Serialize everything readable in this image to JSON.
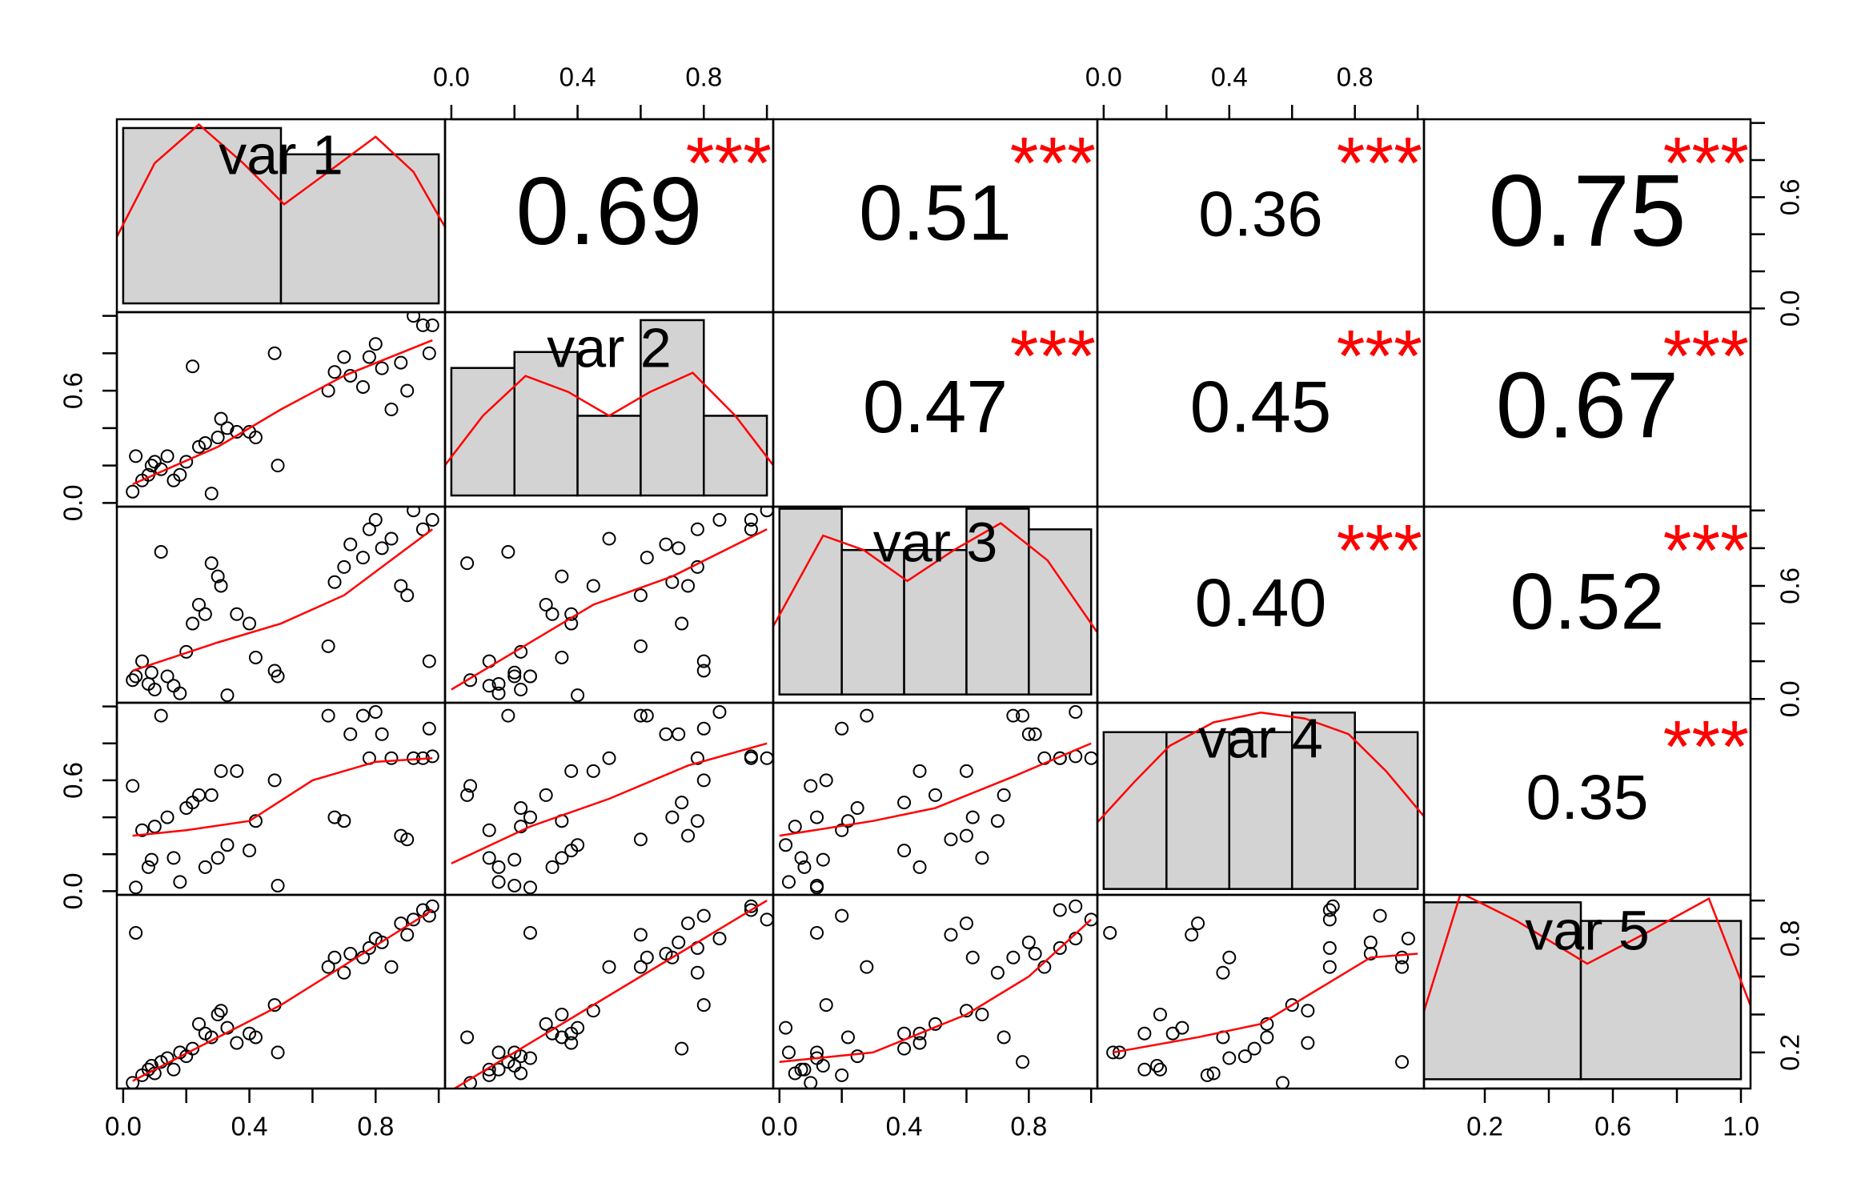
{
  "chart_data": {
    "type": "correlation_matrix",
    "variables": [
      "var 1",
      "var 2",
      "var 3",
      "var 4",
      "var 5"
    ],
    "limits": [
      [
        -0.02,
        1.02
      ],
      [
        -0.02,
        1.02
      ],
      [
        -0.02,
        1.02
      ],
      [
        -0.02,
        1.02
      ],
      [
        0.01,
        1.03
      ]
    ],
    "point_color": "#000000",
    "line_color": "#ff0000",
    "star_color": "#ff0000",
    "hist_color": "#d3d3d3",
    "data": [
      [
        0.03,
        0.04,
        0.06,
        0.08,
        0.09,
        0.1,
        0.12,
        0.14,
        0.16,
        0.18,
        0.2,
        0.22,
        0.24,
        0.26,
        0.28,
        0.3,
        0.31,
        0.33,
        0.36,
        0.4,
        0.42,
        0.48,
        0.49,
        0.65,
        0.67,
        0.7,
        0.72,
        0.76,
        0.78,
        0.8,
        0.82,
        0.85,
        0.88,
        0.9,
        0.92,
        0.95,
        0.97,
        0.98
      ],
      [
        0.06,
        0.25,
        0.12,
        0.15,
        0.2,
        0.22,
        0.18,
        0.25,
        0.12,
        0.15,
        0.22,
        0.73,
        0.3,
        0.32,
        0.05,
        0.35,
        0.45,
        0.4,
        0.38,
        0.38,
        0.35,
        0.8,
        0.2,
        0.6,
        0.7,
        0.78,
        0.68,
        0.62,
        0.78,
        0.85,
        0.72,
        0.5,
        0.75,
        0.6,
        1.0,
        0.95,
        0.8,
        0.95
      ],
      [
        0.1,
        0.12,
        0.2,
        0.08,
        0.14,
        0.05,
        0.78,
        0.12,
        0.07,
        0.03,
        0.25,
        0.4,
        0.5,
        0.45,
        0.72,
        0.65,
        0.6,
        0.02,
        0.45,
        0.4,
        0.22,
        0.15,
        0.12,
        0.28,
        0.62,
        0.7,
        0.82,
        0.75,
        0.9,
        0.95,
        0.8,
        0.85,
        0.6,
        0.55,
        1.0,
        0.9,
        0.2,
        0.95
      ],
      [
        0.57,
        0.02,
        0.33,
        0.13,
        0.17,
        0.35,
        0.95,
        0.4,
        0.18,
        0.05,
        0.45,
        0.48,
        0.52,
        0.13,
        0.52,
        0.18,
        0.65,
        0.25,
        0.65,
        0.22,
        0.38,
        0.6,
        0.03,
        0.95,
        0.4,
        0.38,
        0.85,
        0.95,
        0.72,
        0.97,
        0.85,
        0.72,
        0.3,
        0.28,
        0.72,
        0.72,
        0.88,
        0.73
      ],
      [
        0.04,
        0.83,
        0.08,
        0.11,
        0.13,
        0.09,
        0.15,
        0.17,
        0.11,
        0.2,
        0.18,
        0.22,
        0.35,
        0.3,
        0.28,
        0.4,
        0.42,
        0.33,
        0.25,
        0.3,
        0.28,
        0.45,
        0.2,
        0.65,
        0.7,
        0.62,
        0.72,
        0.7,
        0.75,
        0.8,
        0.78,
        0.65,
        0.88,
        0.82,
        0.9,
        0.95,
        0.92,
        0.97
      ]
    ],
    "histograms": [
      {
        "bins": [
          0,
          0.5,
          1.0
        ],
        "counts": [
          20,
          17
        ],
        "ylim": [
          -1,
          21
        ],
        "density_x": [
          -0.02,
          0.1,
          0.24,
          0.38,
          0.51,
          0.65,
          0.8,
          0.92,
          1.02
        ],
        "density_y": [
          7.6,
          16,
          20.4,
          16,
          11.3,
          15,
          19,
          15,
          8.7
        ]
      },
      {
        "bins": [
          0,
          0.2,
          0.4,
          0.6,
          0.8,
          1.0
        ],
        "counts": [
          8,
          9,
          5,
          11,
          5
        ],
        "ylim": [
          -0.7,
          11.5
        ],
        "density_x": [
          -0.02,
          0.1,
          0.235,
          0.37,
          0.5,
          0.63,
          0.765,
          0.9,
          1.02
        ],
        "density_y": [
          1.9,
          5,
          7.5,
          6.5,
          5,
          6.5,
          7.7,
          5,
          1.9
        ]
      },
      {
        "bins": [
          0,
          0.2,
          0.4,
          0.6,
          0.8,
          1.0
        ],
        "counts": [
          9,
          7,
          7,
          9,
          8
        ],
        "ylim": [
          -0.4,
          9.1
        ],
        "density_x": [
          -0.02,
          0.14,
          0.27,
          0.41,
          0.56,
          0.71,
          0.86,
          1.02
        ],
        "density_y": [
          3.3,
          7.7,
          7,
          5.5,
          7,
          8.3,
          6.5,
          3
        ]
      },
      {
        "bins": [
          0,
          0.2,
          0.4,
          0.6,
          0.8,
          1.0
        ],
        "counts": [
          8,
          8,
          8,
          9,
          8
        ],
        "ylim": [
          -0.3,
          9.5
        ],
        "density_x": [
          -0.02,
          0.1,
          0.21,
          0.35,
          0.5,
          0.64,
          0.78,
          0.9,
          1.02
        ],
        "density_y": [
          3.4,
          5.5,
          7.3,
          8.5,
          9,
          8.7,
          7.9,
          6,
          3.7
        ]
      },
      {
        "bins": [
          0,
          0.5,
          1.0
        ],
        "counts": [
          19,
          17
        ],
        "ylim": [
          -1,
          19.8
        ],
        "density_x": [
          0.01,
          0.125,
          0.3,
          0.52,
          0.72,
          0.9,
          1.03
        ],
        "density_y": [
          7.3,
          20,
          17,
          12.4,
          16,
          19.4,
          7.9
        ]
      }
    ],
    "smooths": [
      {
        "row": 1,
        "col": 0,
        "x": [
          0.03,
          0.3,
          0.5,
          0.7,
          0.98
        ],
        "y": [
          0.1,
          0.3,
          0.5,
          0.68,
          0.87
        ]
      },
      {
        "row": 2,
        "col": 0,
        "x": [
          0.03,
          0.3,
          0.5,
          0.7,
          0.98
        ],
        "y": [
          0.15,
          0.3,
          0.4,
          0.55,
          0.9
        ]
      },
      {
        "row": 2,
        "col": 1,
        "x": [
          0.0,
          0.2,
          0.45,
          0.7,
          1.0
        ],
        "y": [
          0.05,
          0.25,
          0.5,
          0.65,
          0.9
        ]
      },
      {
        "row": 3,
        "col": 0,
        "x": [
          0.03,
          0.2,
          0.4,
          0.6,
          0.8,
          0.98
        ],
        "y": [
          0.3,
          0.33,
          0.38,
          0.6,
          0.7,
          0.72
        ]
      },
      {
        "row": 3,
        "col": 1,
        "x": [
          0.0,
          0.25,
          0.5,
          0.75,
          1.0
        ],
        "y": [
          0.15,
          0.35,
          0.5,
          0.68,
          0.8
        ]
      },
      {
        "row": 3,
        "col": 2,
        "x": [
          0.0,
          0.3,
          0.5,
          0.75,
          1.0
        ],
        "y": [
          0.3,
          0.38,
          0.45,
          0.62,
          0.8
        ]
      },
      {
        "row": 4,
        "col": 0,
        "x": [
          0.03,
          0.5,
          0.98
        ],
        "y": [
          0.05,
          0.45,
          0.95
        ]
      },
      {
        "row": 4,
        "col": 1,
        "x": [
          0.0,
          0.5,
          1.0
        ],
        "y": [
          0.0,
          0.5,
          1.0
        ]
      },
      {
        "row": 4,
        "col": 2,
        "x": [
          0.0,
          0.3,
          0.6,
          0.8,
          1.0
        ],
        "y": [
          0.15,
          0.2,
          0.4,
          0.6,
          0.9
        ]
      },
      {
        "row": 4,
        "col": 3,
        "x": [
          0.03,
          0.3,
          0.5,
          0.7,
          0.85,
          1.0
        ],
        "y": [
          0.2,
          0.28,
          0.35,
          0.55,
          0.7,
          0.72
        ]
      }
    ],
    "correlations": [
      {
        "row": 0,
        "col": 1,
        "value": 0.69,
        "label": "0.69",
        "stars": "***"
      },
      {
        "row": 0,
        "col": 2,
        "value": 0.51,
        "label": "0.51",
        "stars": "***"
      },
      {
        "row": 0,
        "col": 3,
        "value": 0.36,
        "label": "0.36",
        "stars": "***"
      },
      {
        "row": 0,
        "col": 4,
        "value": 0.75,
        "label": "0.75",
        "stars": "***"
      },
      {
        "row": 1,
        "col": 2,
        "value": 0.47,
        "label": "0.47",
        "stars": "***"
      },
      {
        "row": 1,
        "col": 3,
        "value": 0.45,
        "label": "0.45",
        "stars": "***"
      },
      {
        "row": 1,
        "col": 4,
        "value": 0.67,
        "label": "0.67",
        "stars": "***"
      },
      {
        "row": 2,
        "col": 3,
        "value": 0.4,
        "label": "0.40",
        "stars": "***"
      },
      {
        "row": 2,
        "col": 4,
        "value": 0.52,
        "label": "0.52",
        "stars": "***"
      },
      {
        "row": 3,
        "col": 4,
        "value": 0.35,
        "label": "0.35",
        "stars": "***"
      }
    ],
    "axes": [
      {
        "side": "top",
        "var": 1,
        "ticks": [
          0,
          0.2,
          0.4,
          0.6,
          0.8,
          1.0
        ],
        "tick_labels": [
          {
            "value": 0,
            "label": "0.0"
          },
          {
            "value": 0.4,
            "label": "0.4"
          },
          {
            "value": 0.8,
            "label": "0.8"
          }
        ]
      },
      {
        "side": "top",
        "var": 3,
        "ticks": [
          0,
          0.2,
          0.4,
          0.6,
          0.8,
          1.0
        ],
        "tick_labels": [
          {
            "value": 0,
            "label": "0.0"
          },
          {
            "value": 0.4,
            "label": "0.4"
          },
          {
            "value": 0.8,
            "label": "0.8"
          }
        ]
      },
      {
        "side": "bottom",
        "var": 0,
        "ticks": [
          0,
          0.2,
          0.4,
          0.6,
          0.8,
          1.0
        ],
        "tick_labels": [
          {
            "value": 0,
            "label": "0.0"
          },
          {
            "value": 0.4,
            "label": "0.4"
          },
          {
            "value": 0.8,
            "label": "0.8"
          }
        ]
      },
      {
        "side": "bottom",
        "var": 2,
        "ticks": [
          0,
          0.2,
          0.4,
          0.6,
          0.8,
          1.0
        ],
        "tick_labels": [
          {
            "value": 0,
            "label": "0.0"
          },
          {
            "value": 0.4,
            "label": "0.4"
          },
          {
            "value": 0.8,
            "label": "0.8"
          }
        ]
      },
      {
        "side": "bottom",
        "var": 4,
        "ticks": [
          0.2,
          0.4,
          0.6,
          0.8,
          1.0
        ],
        "tick_labels": [
          {
            "value": 0.2,
            "label": "0.2"
          },
          {
            "value": 0.6,
            "label": "0.6"
          },
          {
            "value": 1.0,
            "label": "1.0"
          }
        ]
      },
      {
        "side": "left",
        "var": 1,
        "ticks": [
          0,
          0.2,
          0.4,
          0.6,
          0.8,
          1.0
        ],
        "tick_labels": [
          {
            "value": 0,
            "label": "0.0"
          },
          {
            "value": 0.6,
            "label": "0.6"
          }
        ]
      },
      {
        "side": "left",
        "var": 3,
        "ticks": [
          0,
          0.2,
          0.4,
          0.6,
          0.8,
          1.0
        ],
        "tick_labels": [
          {
            "value": 0,
            "label": "0.0"
          },
          {
            "value": 0.6,
            "label": "0.6"
          }
        ]
      },
      {
        "side": "right",
        "var": 0,
        "ticks": [
          0,
          0.2,
          0.4,
          0.6,
          0.8,
          1.0
        ],
        "tick_labels": [
          {
            "value": 0,
            "label": "0.0"
          },
          {
            "value": 0.6,
            "label": "0.6"
          }
        ]
      },
      {
        "side": "right",
        "var": 2,
        "ticks": [
          0,
          0.2,
          0.4,
          0.6,
          0.8,
          1.0
        ],
        "tick_labels": [
          {
            "value": 0,
            "label": "0.0"
          },
          {
            "value": 0.6,
            "label": "0.6"
          }
        ]
      },
      {
        "side": "right",
        "var": 4,
        "ticks": [
          0.2,
          0.4,
          0.6,
          0.8,
          1.0
        ],
        "tick_labels": [
          {
            "value": 0.2,
            "label": "0.2"
          },
          {
            "value": 0.8,
            "label": "0.8"
          }
        ]
      }
    ]
  }
}
